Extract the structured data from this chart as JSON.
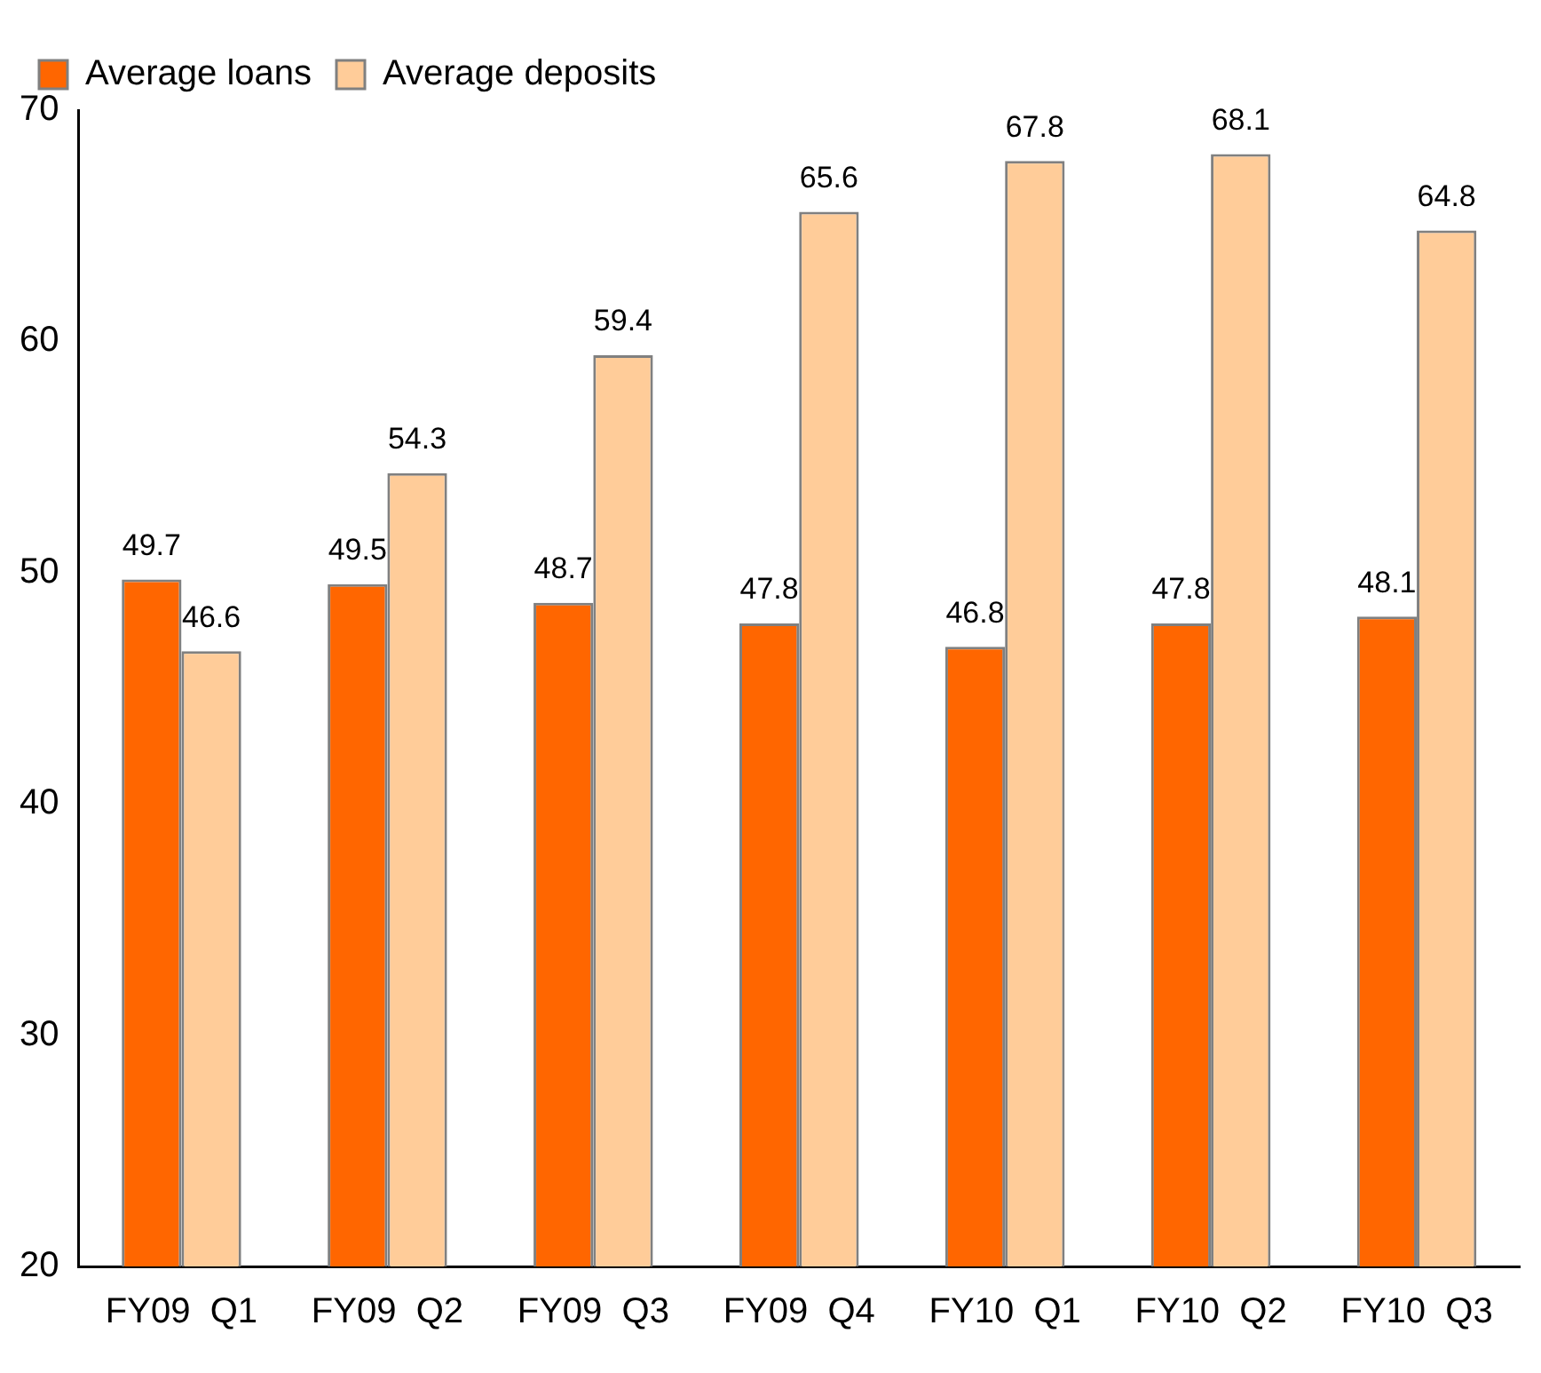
{
  "chart_data": {
    "type": "bar",
    "categories": [
      "FY09  Q1",
      "FY09  Q2",
      "FY09  Q3",
      "FY09  Q4",
      "FY10  Q1",
      "FY10  Q2",
      "FY10  Q3"
    ],
    "series": [
      {
        "name": "Average loans",
        "color": "#ff6600",
        "values": [
          49.7,
          49.5,
          48.7,
          47.8,
          46.8,
          47.8,
          48.1
        ]
      },
      {
        "name": "Average deposits",
        "color": "#ffcc99",
        "values": [
          46.6,
          54.3,
          59.4,
          65.6,
          67.8,
          68.1,
          64.8
        ]
      }
    ],
    "ylim": [
      20,
      70
    ],
    "yticks": [
      20,
      30,
      40,
      50,
      60,
      70
    ],
    "grid": false,
    "legend": "top left",
    "data_labels": true
  }
}
